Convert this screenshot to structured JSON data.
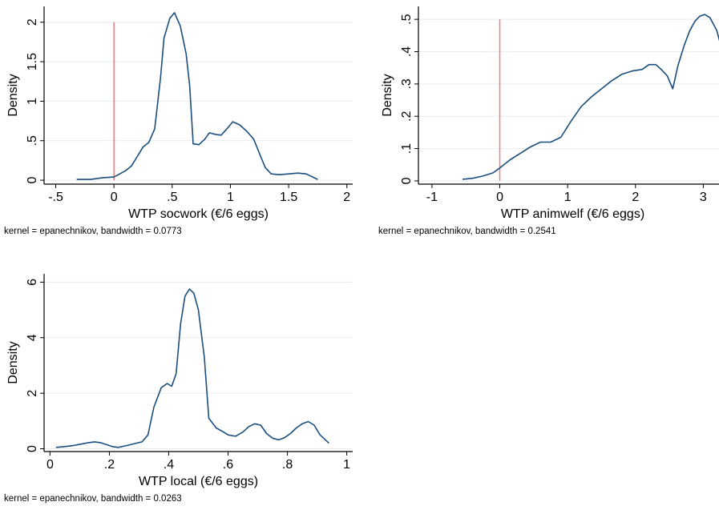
{
  "colors": {
    "density_line": "#1a4e7e",
    "reference_line": "#f47c7c",
    "grid": "#e6ecef",
    "axis": "#000000"
  },
  "chart_data": [
    {
      "type": "line",
      "xlabel": "WTP socwork (€/6 eggs)",
      "ylabel": "Density",
      "note": "kernel = epanechnikov, bandwidth = 0.0773",
      "xlim": [
        -0.6,
        2.05
      ],
      "ylim": [
        -0.05,
        2.2
      ],
      "xticks": [
        -0.5,
        0,
        0.5,
        1,
        1.5,
        2
      ],
      "xtick_labels": [
        "-.5",
        "0",
        ".5",
        "1",
        "1.5",
        "2"
      ],
      "yticks": [
        0,
        0.5,
        1,
        1.5,
        2
      ],
      "ytick_labels": [
        "0",
        ".5",
        "1",
        "1.5",
        "2"
      ],
      "reference_x": 0,
      "reference_ylim": [
        0,
        2.0
      ],
      "x": [
        -0.32,
        -0.2,
        -0.1,
        0.0,
        0.05,
        0.1,
        0.15,
        0.2,
        0.25,
        0.3,
        0.35,
        0.4,
        0.43,
        0.48,
        0.52,
        0.57,
        0.62,
        0.65,
        0.68,
        0.73,
        0.78,
        0.82,
        0.87,
        0.92,
        0.97,
        1.02,
        1.08,
        1.14,
        1.2,
        1.26,
        1.3,
        1.35,
        1.42,
        1.5,
        1.58,
        1.65,
        1.75
      ],
      "y": [
        0.01,
        0.01,
        0.03,
        0.04,
        0.08,
        0.12,
        0.18,
        0.3,
        0.42,
        0.48,
        0.65,
        1.3,
        1.8,
        2.05,
        2.12,
        1.95,
        1.6,
        1.2,
        0.46,
        0.45,
        0.52,
        0.6,
        0.58,
        0.57,
        0.65,
        0.74,
        0.7,
        0.62,
        0.52,
        0.3,
        0.16,
        0.08,
        0.07,
        0.08,
        0.09,
        0.08,
        0.01
      ]
    },
    {
      "type": "line",
      "xlabel": "WTP animwelf (€/6 eggs)",
      "ylabel": "Density",
      "note": "kernel = epanechnikov, bandwidth = 0.2541",
      "xlim": [
        -1.2,
        3.35
      ],
      "ylim": [
        -0.01,
        0.54
      ],
      "xticks": [
        -1,
        0,
        1,
        2,
        3
      ],
      "xtick_labels": [
        "-1",
        "0",
        "1",
        "2",
        "3"
      ],
      "yticks": [
        0,
        0.1,
        0.2,
        0.3,
        0.4,
        0.5
      ],
      "ytick_labels": [
        "0",
        ".1",
        ".2",
        ".3",
        ".4",
        ".5"
      ],
      "reference_x": 0,
      "reference_ylim": [
        0,
        0.5
      ],
      "x": [
        -0.55,
        -0.4,
        -0.25,
        -0.1,
        0.0,
        0.15,
        0.3,
        0.45,
        0.6,
        0.75,
        0.9,
        1.05,
        1.2,
        1.35,
        1.5,
        1.65,
        1.8,
        1.95,
        2.1,
        2.2,
        2.3,
        2.38,
        2.47,
        2.55,
        2.63,
        2.72,
        2.8,
        2.88,
        2.95,
        3.02,
        3.1,
        3.2,
        3.32
      ],
      "y": [
        0.005,
        0.008,
        0.015,
        0.025,
        0.04,
        0.065,
        0.085,
        0.105,
        0.12,
        0.12,
        0.135,
        0.185,
        0.23,
        0.26,
        0.285,
        0.31,
        0.33,
        0.34,
        0.345,
        0.36,
        0.36,
        0.345,
        0.325,
        0.285,
        0.36,
        0.42,
        0.465,
        0.495,
        0.51,
        0.515,
        0.505,
        0.465,
        0.37
      ]
    },
    {
      "type": "line",
      "xlabel": "WTP local (€/6 eggs)",
      "ylabel": "Density",
      "note": "kernel = epanechnikov, bandwidth = 0.0263",
      "xlim": [
        -0.02,
        1.02
      ],
      "ylim": [
        -0.1,
        6.3
      ],
      "xticks": [
        0,
        0.2,
        0.4,
        0.6,
        0.8,
        1
      ],
      "xtick_labels": [
        "0",
        ".2",
        ".4",
        ".6",
        ".8",
        "1"
      ],
      "yticks": [
        0,
        2,
        4,
        6
      ],
      "ytick_labels": [
        "0",
        "2",
        "4",
        "6"
      ],
      "x": [
        0.02,
        0.05,
        0.08,
        0.11,
        0.13,
        0.15,
        0.17,
        0.19,
        0.21,
        0.23,
        0.26,
        0.29,
        0.31,
        0.33,
        0.35,
        0.375,
        0.395,
        0.41,
        0.425,
        0.44,
        0.455,
        0.47,
        0.485,
        0.5,
        0.52,
        0.535,
        0.56,
        0.585,
        0.6,
        0.625,
        0.65,
        0.67,
        0.69,
        0.71,
        0.73,
        0.75,
        0.77,
        0.79,
        0.81,
        0.83,
        0.85,
        0.87,
        0.89,
        0.91,
        0.94
      ],
      "y": [
        0.05,
        0.08,
        0.12,
        0.18,
        0.22,
        0.25,
        0.22,
        0.15,
        0.08,
        0.05,
        0.12,
        0.2,
        0.25,
        0.5,
        1.5,
        2.2,
        2.35,
        2.25,
        2.7,
        4.5,
        5.5,
        5.75,
        5.6,
        5.0,
        3.3,
        1.1,
        0.75,
        0.6,
        0.5,
        0.45,
        0.6,
        0.8,
        0.9,
        0.85,
        0.55,
        0.38,
        0.32,
        0.4,
        0.55,
        0.75,
        0.9,
        0.98,
        0.85,
        0.5,
        0.2
      ]
    }
  ]
}
